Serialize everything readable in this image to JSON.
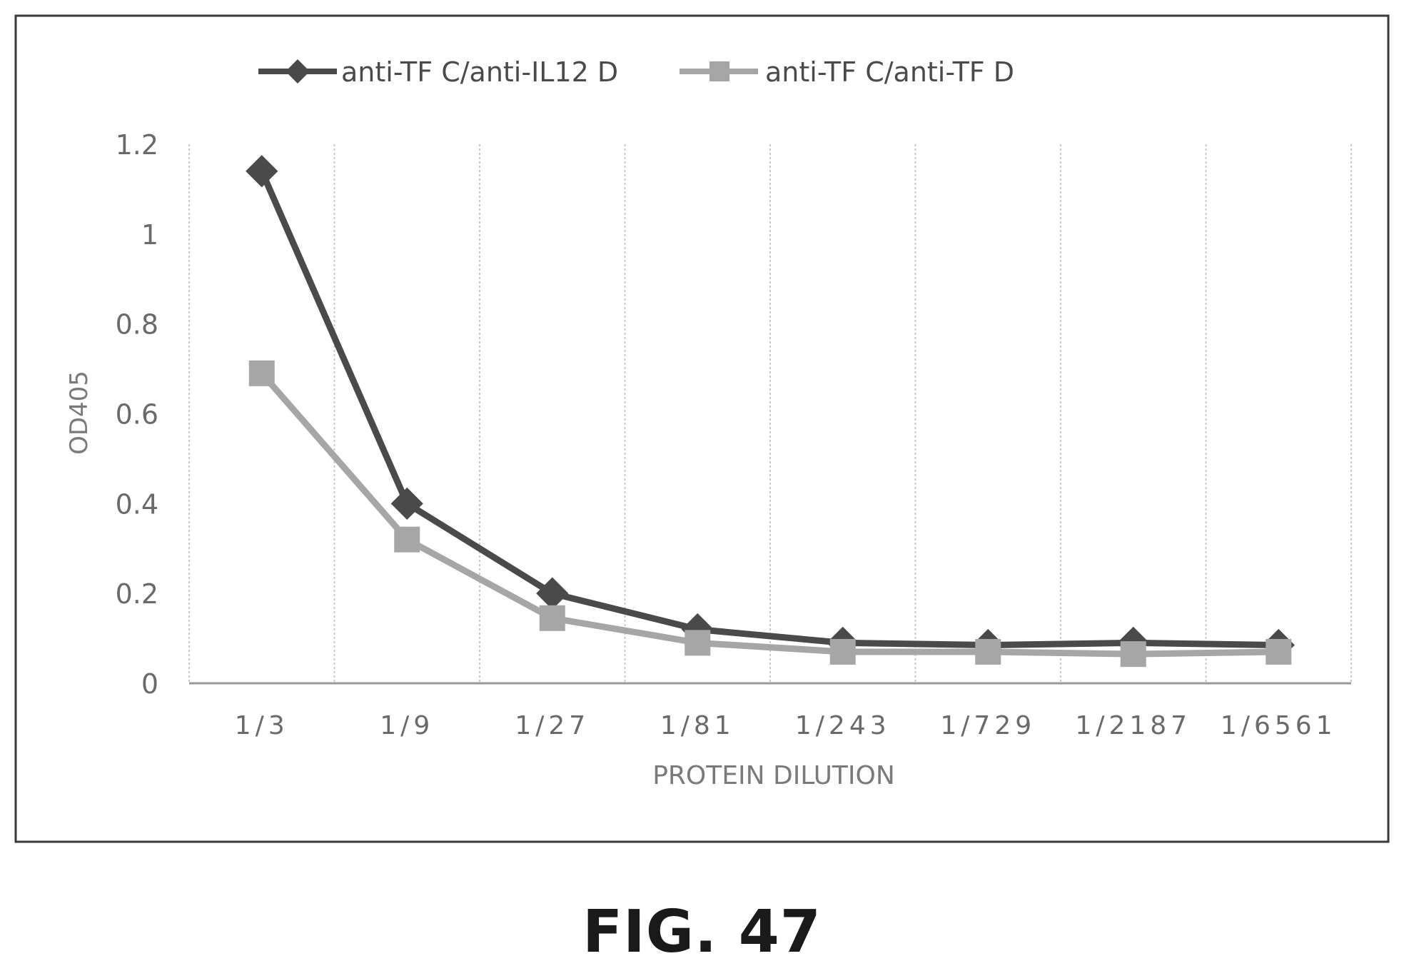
{
  "chart_data": {
    "type": "line",
    "categories": [
      "1/3",
      "1/9",
      "1/27",
      "1/81",
      "1/243",
      "1/729",
      "1/2187",
      "1/6561"
    ],
    "series": [
      {
        "name": "anti-TF C/anti-IL12 D",
        "values": [
          1.14,
          0.4,
          0.2,
          0.12,
          0.09,
          0.085,
          0.09,
          0.085
        ],
        "color": "#4a4a4a",
        "marker": "diamond"
      },
      {
        "name": "anti-TF C/anti-TF D",
        "values": [
          0.69,
          0.32,
          0.145,
          0.09,
          0.07,
          0.07,
          0.065,
          0.07
        ],
        "color": "#a6a6a6",
        "marker": "square"
      }
    ],
    "xlabel": "PROTEIN DILUTION",
    "ylabel": "OD405",
    "ylim": [
      0,
      1.2
    ],
    "yticks": [
      "0",
      "0.2",
      "0.4",
      "0.6",
      "0.8",
      "1",
      "1.2"
    ],
    "grid": "vertical",
    "legend_position": "top"
  },
  "caption": "FIG. 47"
}
